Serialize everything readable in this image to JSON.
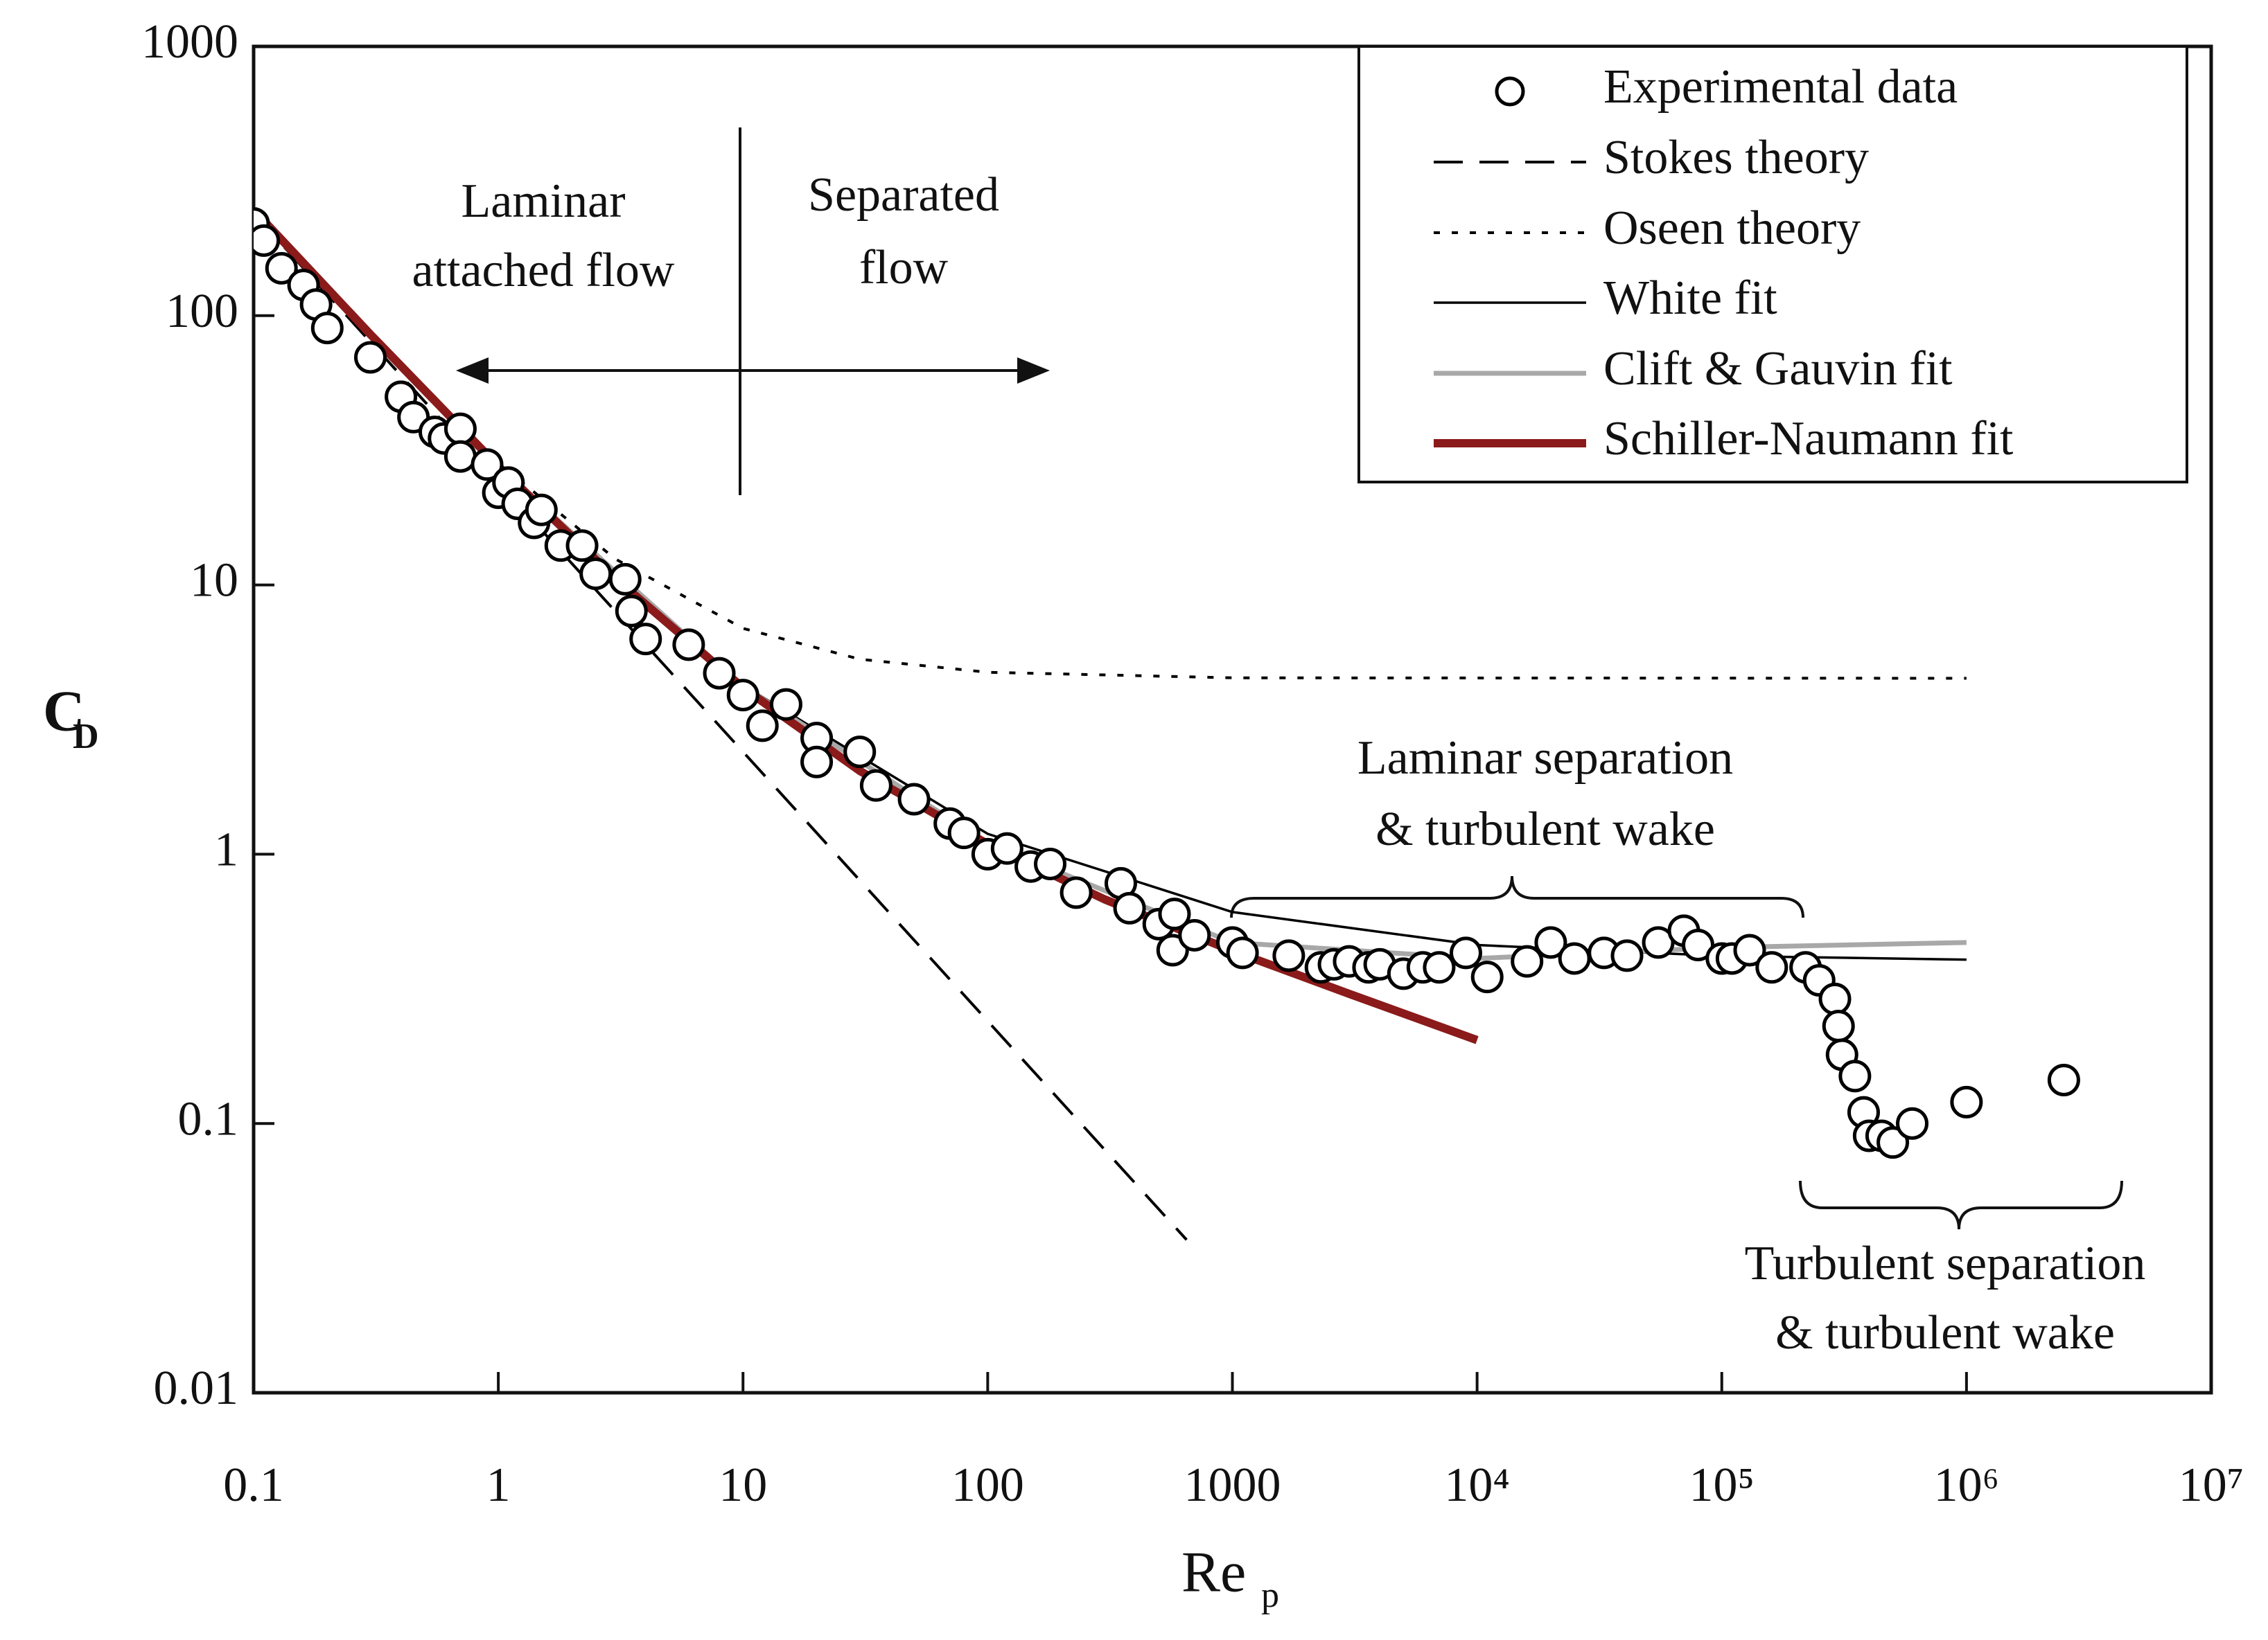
{
  "chart_data": {
    "type": "line",
    "xlabel": {
      "main": "Re",
      "sub": "p"
    },
    "ylabel": {
      "main": "C",
      "sub": "D"
    },
    "log_x": true,
    "log_y": true,
    "xlim": [
      0.1,
      10000000
    ],
    "xticks": [
      0.1,
      1,
      10,
      100,
      1000,
      {
        "value": 10000,
        "label": "10⁴"
      },
      {
        "value": 100000,
        "label": "10⁵"
      },
      {
        "value": 1000000,
        "label": "10⁶"
      },
      {
        "value": 10000000,
        "label": "10⁷"
      }
    ],
    "ylim": [
      0.01,
      1000
    ],
    "yticks": [
      0.01,
      0.1,
      1,
      10,
      100,
      1000
    ],
    "legend": "upper right",
    "annotations": [
      [
        "Laminar",
        "attached flow"
      ],
      [
        "Separated",
        "flow"
      ],
      [
        "Laminar separation",
        "& turbulent wake"
      ],
      [
        "Turbulent separation",
        "& turbulent wake"
      ]
    ],
    "series": [
      {
        "name": "Experimental data",
        "type": "scatter",
        "marker": "circle",
        "color": "#000000",
        "x": [
          0.1,
          0.11,
          0.13,
          0.16,
          0.18,
          0.2,
          0.3,
          0.4,
          0.45,
          0.55,
          0.6,
          0.7,
          0.7,
          0.9,
          1.0,
          1.1,
          1.2,
          1.4,
          1.5,
          1.8,
          2.2,
          2.5,
          3.3,
          3.5,
          4,
          6,
          8,
          10,
          12,
          15,
          20,
          20,
          30,
          35,
          50,
          70,
          80,
          100,
          120,
          150,
          180,
          230,
          350,
          380,
          500,
          580,
          570,
          700,
          1000,
          1100,
          1700,
          2300,
          2600,
          3000,
          3600,
          4000,
          5000,
          6000,
          7000,
          9000,
          11000,
          16000,
          20000,
          25000,
          33000,
          41000,
          55000,
          70000,
          80000,
          100000,
          110000,
          130000,
          160000,
          220000,
          250000,
          290000,
          300000,
          310000,
          350000,
          380000,
          400000,
          450000,
          500000,
          600000,
          1000000,
          2500000
        ],
        "values": [
          220,
          190,
          150,
          130,
          110,
          90,
          70,
          50,
          42,
          37,
          35,
          38,
          30,
          28,
          22,
          24,
          20,
          17,
          19,
          14,
          14,
          11,
          10.5,
          8,
          6.3,
          6,
          4.7,
          3.9,
          3,
          3.6,
          2.7,
          2.2,
          2.4,
          1.8,
          1.6,
          1.3,
          1.2,
          1.0,
          1.05,
          0.9,
          0.92,
          0.72,
          0.78,
          0.63,
          0.55,
          0.6,
          0.44,
          0.5,
          0.47,
          0.43,
          0.42,
          0.38,
          0.39,
          0.4,
          0.38,
          0.39,
          0.36,
          0.38,
          0.38,
          0.43,
          0.35,
          0.4,
          0.47,
          0.41,
          0.43,
          0.42,
          0.47,
          0.52,
          0.46,
          0.41,
          0.41,
          0.44,
          0.38,
          0.38,
          0.34,
          0.29,
          0.23,
          0.18,
          0.15,
          0.11,
          0.09,
          0.09,
          0.085,
          0.1,
          0.12,
          0.145
        ]
      },
      {
        "name": "Stokes theory",
        "dash": "dashed",
        "color": "#000000",
        "x": [
          0.1,
          1,
          10,
          100,
          650
        ],
        "values": [
          240,
          24,
          2.4,
          0.24,
          0.037
        ]
      },
      {
        "name": "Oseen theory",
        "dash": "dotted",
        "color": "#000000",
        "x": [
          0.1,
          1,
          3,
          10,
          30,
          100,
          1000,
          1000000
        ],
        "values": [
          244.5,
          28.5,
          12.5,
          6.9,
          5.3,
          4.74,
          4.52,
          4.5
        ]
      },
      {
        "name": "White fit",
        "dash": "solid",
        "color": "#000000",
        "x": [
          0.1,
          1,
          10,
          100,
          1000,
          10000,
          100000,
          1000000
        ],
        "values": [
          245,
          27.4,
          4.24,
          1.19,
          0.61,
          0.46,
          0.419,
          0.406
        ]
      },
      {
        "name": "Clift & Gauvin fit",
        "dash": "solid",
        "color": "#a8a8a8",
        "x": [
          0.1,
          1,
          10,
          100,
          1000,
          10000,
          100000,
          1000000
        ],
        "values": [
          245,
          27.5,
          4.2,
          1.1,
          0.47,
          0.41,
          0.45,
          0.47
        ]
      },
      {
        "name": "Schiller-Naumann fit",
        "dash": "solid",
        "color": "#8b1a1a",
        "x": [
          0.1,
          0.3,
          1,
          3,
          10,
          30,
          100,
          300,
          1000,
          3000,
          10000
        ],
        "values": [
          247,
          85.2,
          27.6,
          10.6,
          4.15,
          2.04,
          1.09,
          0.68,
          0.438,
          0.303,
          0.204
        ]
      }
    ]
  }
}
